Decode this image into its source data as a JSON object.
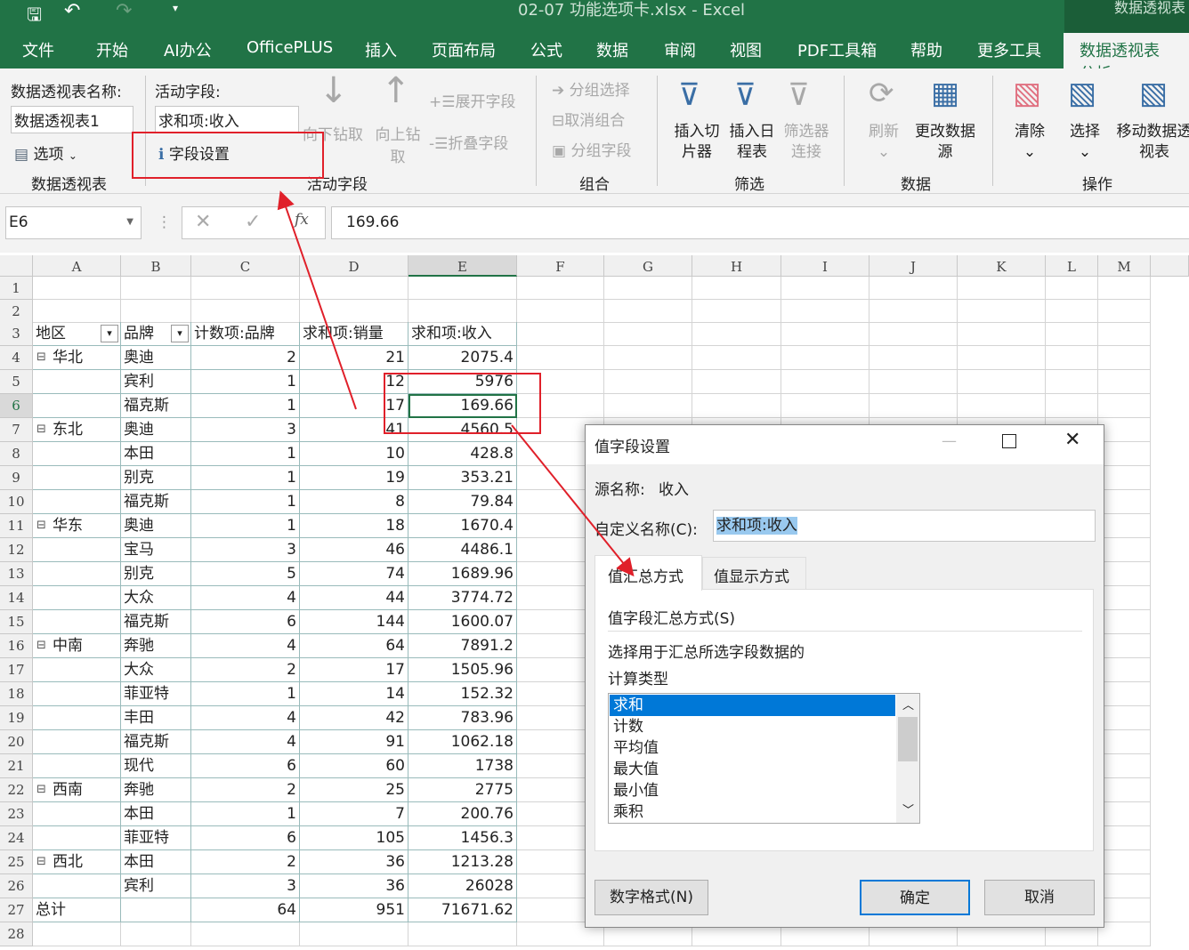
{
  "window": {
    "title": "02-07 功能选项卡.xlsx  -  Excel",
    "context_tab_group": "数据透视表"
  },
  "tabs": [
    "文件",
    "开始",
    "AI办公",
    "OfficePLUS",
    "插入",
    "页面布局",
    "公式",
    "数据",
    "审阅",
    "视图",
    "PDF工具箱",
    "帮助",
    "更多工具",
    "数据透视表分析"
  ],
  "ribbon": {
    "pivot_name_label": "数据透视表名称:",
    "pivot_name_value": "数据透视表1",
    "options": "选项",
    "group_pivot": "数据透视表",
    "active_field_label": "活动字段:",
    "active_field_value": "求和项:收入",
    "field_settings": "字段设置",
    "drill_down": "向下钻取",
    "drill_up": "向上钻取",
    "expand_field": "展开字段",
    "collapse_field": "折叠字段",
    "group_active": "活动字段",
    "group_selection": "分组选择",
    "ungroup": "取消组合",
    "group_field": "分组字段",
    "group_group": "组合",
    "insert_slicer": "插入切片器",
    "insert_timeline": "插入日程表",
    "filter_connections": "筛选器连接",
    "group_filter": "筛选",
    "refresh": "刷新",
    "change_source": "更改数据源",
    "group_data": "数据",
    "clear": "清除",
    "select": "选择",
    "move_pivot": "移动数据透视表",
    "group_actions": "操作"
  },
  "formula_bar": {
    "name_box": "E6",
    "fx": "fx",
    "value": "169.66"
  },
  "columns": [
    "A",
    "B",
    "C",
    "D",
    "E",
    "F",
    "G",
    "H",
    "I",
    "J",
    "K",
    "L",
    "M"
  ],
  "pivot": {
    "headers": [
      "地区",
      "品牌",
      "计数项:品牌",
      "求和项:销量",
      "求和项:收入"
    ],
    "rows": [
      [
        "华北",
        "奥迪",
        "2",
        "21",
        "2075.4"
      ],
      [
        "",
        "宾利",
        "1",
        "12",
        "5976"
      ],
      [
        "",
        "福克斯",
        "1",
        "17",
        "169.66"
      ],
      [
        "东北",
        "奥迪",
        "3",
        "41",
        "4560.5"
      ],
      [
        "",
        "本田",
        "1",
        "10",
        "428.8"
      ],
      [
        "",
        "别克",
        "1",
        "19",
        "353.21"
      ],
      [
        "",
        "福克斯",
        "1",
        "8",
        "79.84"
      ],
      [
        "华东",
        "奥迪",
        "1",
        "18",
        "1670.4"
      ],
      [
        "",
        "宝马",
        "3",
        "46",
        "4486.1"
      ],
      [
        "",
        "别克",
        "5",
        "74",
        "1689.96"
      ],
      [
        "",
        "大众",
        "4",
        "44",
        "3774.72"
      ],
      [
        "",
        "福克斯",
        "6",
        "144",
        "1600.07"
      ],
      [
        "中南",
        "奔驰",
        "4",
        "64",
        "7891.2"
      ],
      [
        "",
        "大众",
        "2",
        "17",
        "1505.96"
      ],
      [
        "",
        "菲亚特",
        "1",
        "14",
        "152.32"
      ],
      [
        "",
        "丰田",
        "4",
        "42",
        "783.96"
      ],
      [
        "",
        "福克斯",
        "4",
        "91",
        "1062.18"
      ],
      [
        "",
        "现代",
        "6",
        "60",
        "1738"
      ],
      [
        "西南",
        "奔驰",
        "2",
        "25",
        "2775"
      ],
      [
        "",
        "本田",
        "1",
        "7",
        "200.76"
      ],
      [
        "",
        "菲亚特",
        "6",
        "105",
        "1456.3"
      ],
      [
        "西北",
        "本田",
        "2",
        "36",
        "1213.28"
      ],
      [
        "",
        "宾利",
        "3",
        "36",
        "26028"
      ]
    ],
    "total": [
      "总计",
      "",
      "64",
      "951",
      "71671.62"
    ]
  },
  "dialog": {
    "title": "值字段设置",
    "source_label": "源名称:",
    "source_value": "收入",
    "custom_label": "自定义名称(C):",
    "custom_value": "求和项:收入",
    "tab_summarize": "值汇总方式",
    "tab_show": "值显示方式",
    "section": "值字段汇总方式(S)",
    "desc1": "选择用于汇总所选字段数据的",
    "desc2": "计算类型",
    "options": [
      "求和",
      "计数",
      "平均值",
      "最大值",
      "最小值",
      "乘积"
    ],
    "selected": "求和",
    "number_format": "数字格式(N)",
    "ok": "确定",
    "cancel": "取消"
  },
  "colors": {
    "excel_green": "#217346",
    "annotation_red": "#e0202a",
    "selection_blue": "#0078d7"
  }
}
